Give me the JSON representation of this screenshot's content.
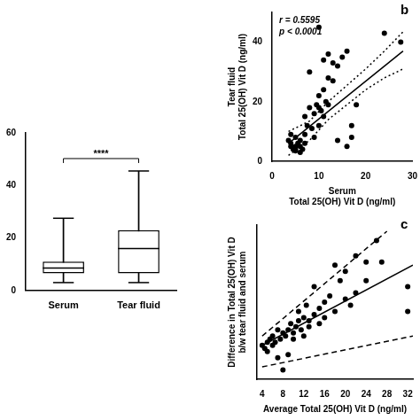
{
  "chart_data": [
    {
      "type": "box",
      "categories": [
        "Serum",
        "Tear fluid"
      ],
      "min": [
        3,
        3
      ],
      "q1": [
        6.5,
        6.5
      ],
      "median": [
        8.5,
        16
      ],
      "q3": [
        11,
        23
      ],
      "max": [
        27.5,
        45.5
      ],
      "annotations": [
        "****"
      ],
      "ylim": [
        0,
        60
      ],
      "yticks": [
        0,
        20,
        40,
        60
      ],
      "grid": false
    },
    {
      "type": "scatter",
      "panel_label": "b",
      "annotations": [
        "r = 0.5595",
        "p < 0.0001"
      ],
      "xlabel": [
        "Serum",
        "Total 25(OH) Vit D (ng/ml)"
      ],
      "ylabel": [
        "Tear fluid",
        "Total 25(OH) Vit D (ng/ml)"
      ],
      "xlim": [
        0,
        30
      ],
      "xticks": [
        0,
        10,
        20,
        30
      ],
      "ylim": [
        0,
        50
      ],
      "yticks": [
        0,
        20,
        40
      ],
      "grid": false,
      "series": [
        {
          "type": "scatter",
          "marker": "circle",
          "color": "#000000",
          "x": [
            3.5,
            4,
            4,
            4.5,
            5,
            5,
            5.5,
            5,
            6,
            6,
            6.5,
            7,
            7,
            4,
            5,
            6,
            7.5,
            7,
            8,
            8,
            8.5,
            9,
            9,
            9.5,
            10,
            10,
            10.5,
            11,
            11,
            11,
            11.5,
            12,
            12,
            13,
            13,
            14,
            14,
            15,
            16,
            16,
            17,
            18,
            10,
            10,
            12,
            24,
            27.5,
            17
          ],
          "values": [
            7,
            6,
            5,
            4,
            5,
            8,
            6,
            4,
            5,
            7,
            4,
            6,
            9,
            9,
            3.5,
            3,
            12,
            15,
            18,
            30,
            11,
            16,
            8,
            19,
            12,
            22,
            17,
            15,
            24,
            34,
            20,
            19,
            28,
            27,
            33,
            32,
            7,
            35,
            37,
            5,
            8,
            19,
            18,
            45,
            36,
            43,
            40,
            12
          ]
        },
        {
          "type": "line",
          "line_style": "solid",
          "color": "#000000",
          "x": [
            3.5,
            28
          ],
          "values": [
            6,
            37
          ]
        },
        {
          "type": "line",
          "line_style": "dotted",
          "color": "#000000",
          "x": [
            3.5,
            8,
            12,
            16,
            20,
            24,
            28
          ],
          "values": [
            10,
            13.5,
            20,
            25.5,
            31,
            37,
            43.5
          ]
        },
        {
          "type": "line",
          "line_style": "dotted",
          "color": "#000000",
          "x": [
            3.5,
            8,
            12,
            16,
            20,
            24,
            28
          ],
          "values": [
            2,
            7,
            14,
            19,
            24,
            28,
            31
          ]
        }
      ]
    },
    {
      "type": "scatter",
      "panel_label": "c",
      "xlabel": "Average Total 25(OH) Vit D (ng/ml)",
      "ylabel": [
        "Difference in Total 25(OH) Vit D",
        "b/w tear fluid and serum"
      ],
      "xlim": [
        3,
        33
      ],
      "xticks": [
        4,
        8,
        12,
        16,
        20,
        24,
        28,
        32
      ],
      "ylim": [
        -10,
        40
      ],
      "tick_labels": "x",
      "grid": false,
      "series": [
        {
          "type": "scatter",
          "marker": "circle",
          "color": "#000000",
          "x": [
            4,
            4.5,
            5,
            5,
            5.5,
            6,
            6,
            6.5,
            7,
            7,
            7.5,
            8,
            8,
            8.5,
            9,
            9,
            9.5,
            10,
            10,
            10.5,
            11,
            11,
            11.5,
            12,
            12,
            12.5,
            13,
            13,
            14,
            14,
            15,
            15,
            16,
            16,
            17,
            18,
            18,
            19,
            20,
            20,
            21,
            22,
            22,
            24,
            24,
            26,
            27,
            32,
            32
          ],
          "values": [
            1,
            0,
            2,
            -1,
            3,
            1,
            4,
            2,
            6,
            -3,
            3,
            5,
            -7,
            4,
            6,
            -2,
            8,
            5,
            3,
            7,
            9,
            12,
            6,
            4,
            10,
            14,
            9,
            7,
            20,
            11,
            13,
            8,
            15,
            10,
            17,
            12,
            27,
            22,
            16,
            25,
            14,
            30,
            18,
            28,
            22,
            35,
            28,
            12,
            20
          ]
        },
        {
          "type": "line",
          "line_style": "solid",
          "color": "#000000",
          "x": [
            4,
            33
          ],
          "values": [
            1,
            27
          ]
        },
        {
          "type": "line",
          "line_style": "dashed",
          "color": "#000000",
          "x": [
            4,
            28
          ],
          "values": [
            4,
            38
          ]
        },
        {
          "type": "line",
          "line_style": "dashed",
          "color": "#000000",
          "x": [
            4,
            33
          ],
          "values": [
            -6,
            4
          ]
        }
      ]
    }
  ]
}
